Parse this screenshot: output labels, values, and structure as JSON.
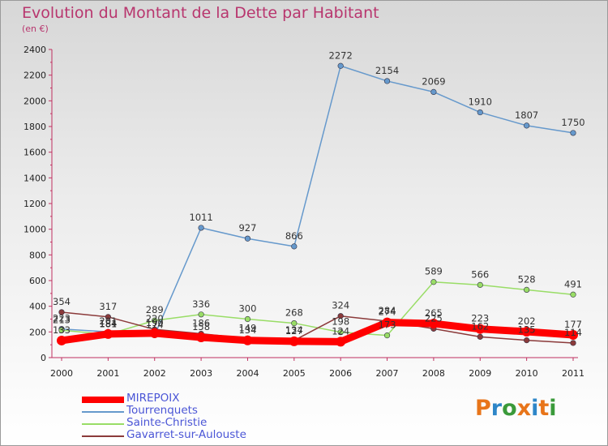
{
  "header": {
    "title": "Evolution du Montant de la Dette par Habitant",
    "unit": "(en €)"
  },
  "brand": {
    "logo_text": "Proxiti"
  },
  "chart_data": {
    "type": "line",
    "title": "Evolution du Montant de la Dette par Habitant",
    "subtitle": "(en €)",
    "xlabel": "",
    "ylabel": "",
    "x": [
      "2000",
      "2001",
      "2002",
      "2003",
      "2004",
      "2005",
      "2006",
      "2007",
      "2008",
      "2009",
      "2010",
      "2011"
    ],
    "ylim": [
      0,
      2400
    ],
    "yticks": [
      0,
      200,
      400,
      600,
      800,
      1000,
      1200,
      1400,
      1600,
      1800,
      2000,
      2200,
      2400
    ],
    "grid": false,
    "legend_position": "bottom-left",
    "series": [
      {
        "name": "MIREPOIX",
        "color": "#ff0000",
        "values": [
          133,
          184,
          190,
          158,
          134,
          127,
          124,
          274,
          265,
          223,
          202,
          177
        ]
      },
      {
        "name": "Tourrenquets",
        "color": "#6699cc",
        "values": [
          223,
          201,
          174,
          1011,
          927,
          866,
          2272,
          2154,
          2069,
          1910,
          1807,
          1750
        ]
      },
      {
        "name": "Sainte-Christie",
        "color": "#99dd66",
        "values": [
          213,
          181,
          289,
          336,
          300,
          268,
          198,
          173,
          589,
          566,
          528,
          491
        ]
      },
      {
        "name": "Gavarret-sur-Aulouste",
        "color": "#8b3a3a",
        "values": [
          354,
          317,
          220,
          186,
          149,
          134,
          324,
          284,
          225,
          162,
          135,
          114
        ]
      }
    ]
  }
}
